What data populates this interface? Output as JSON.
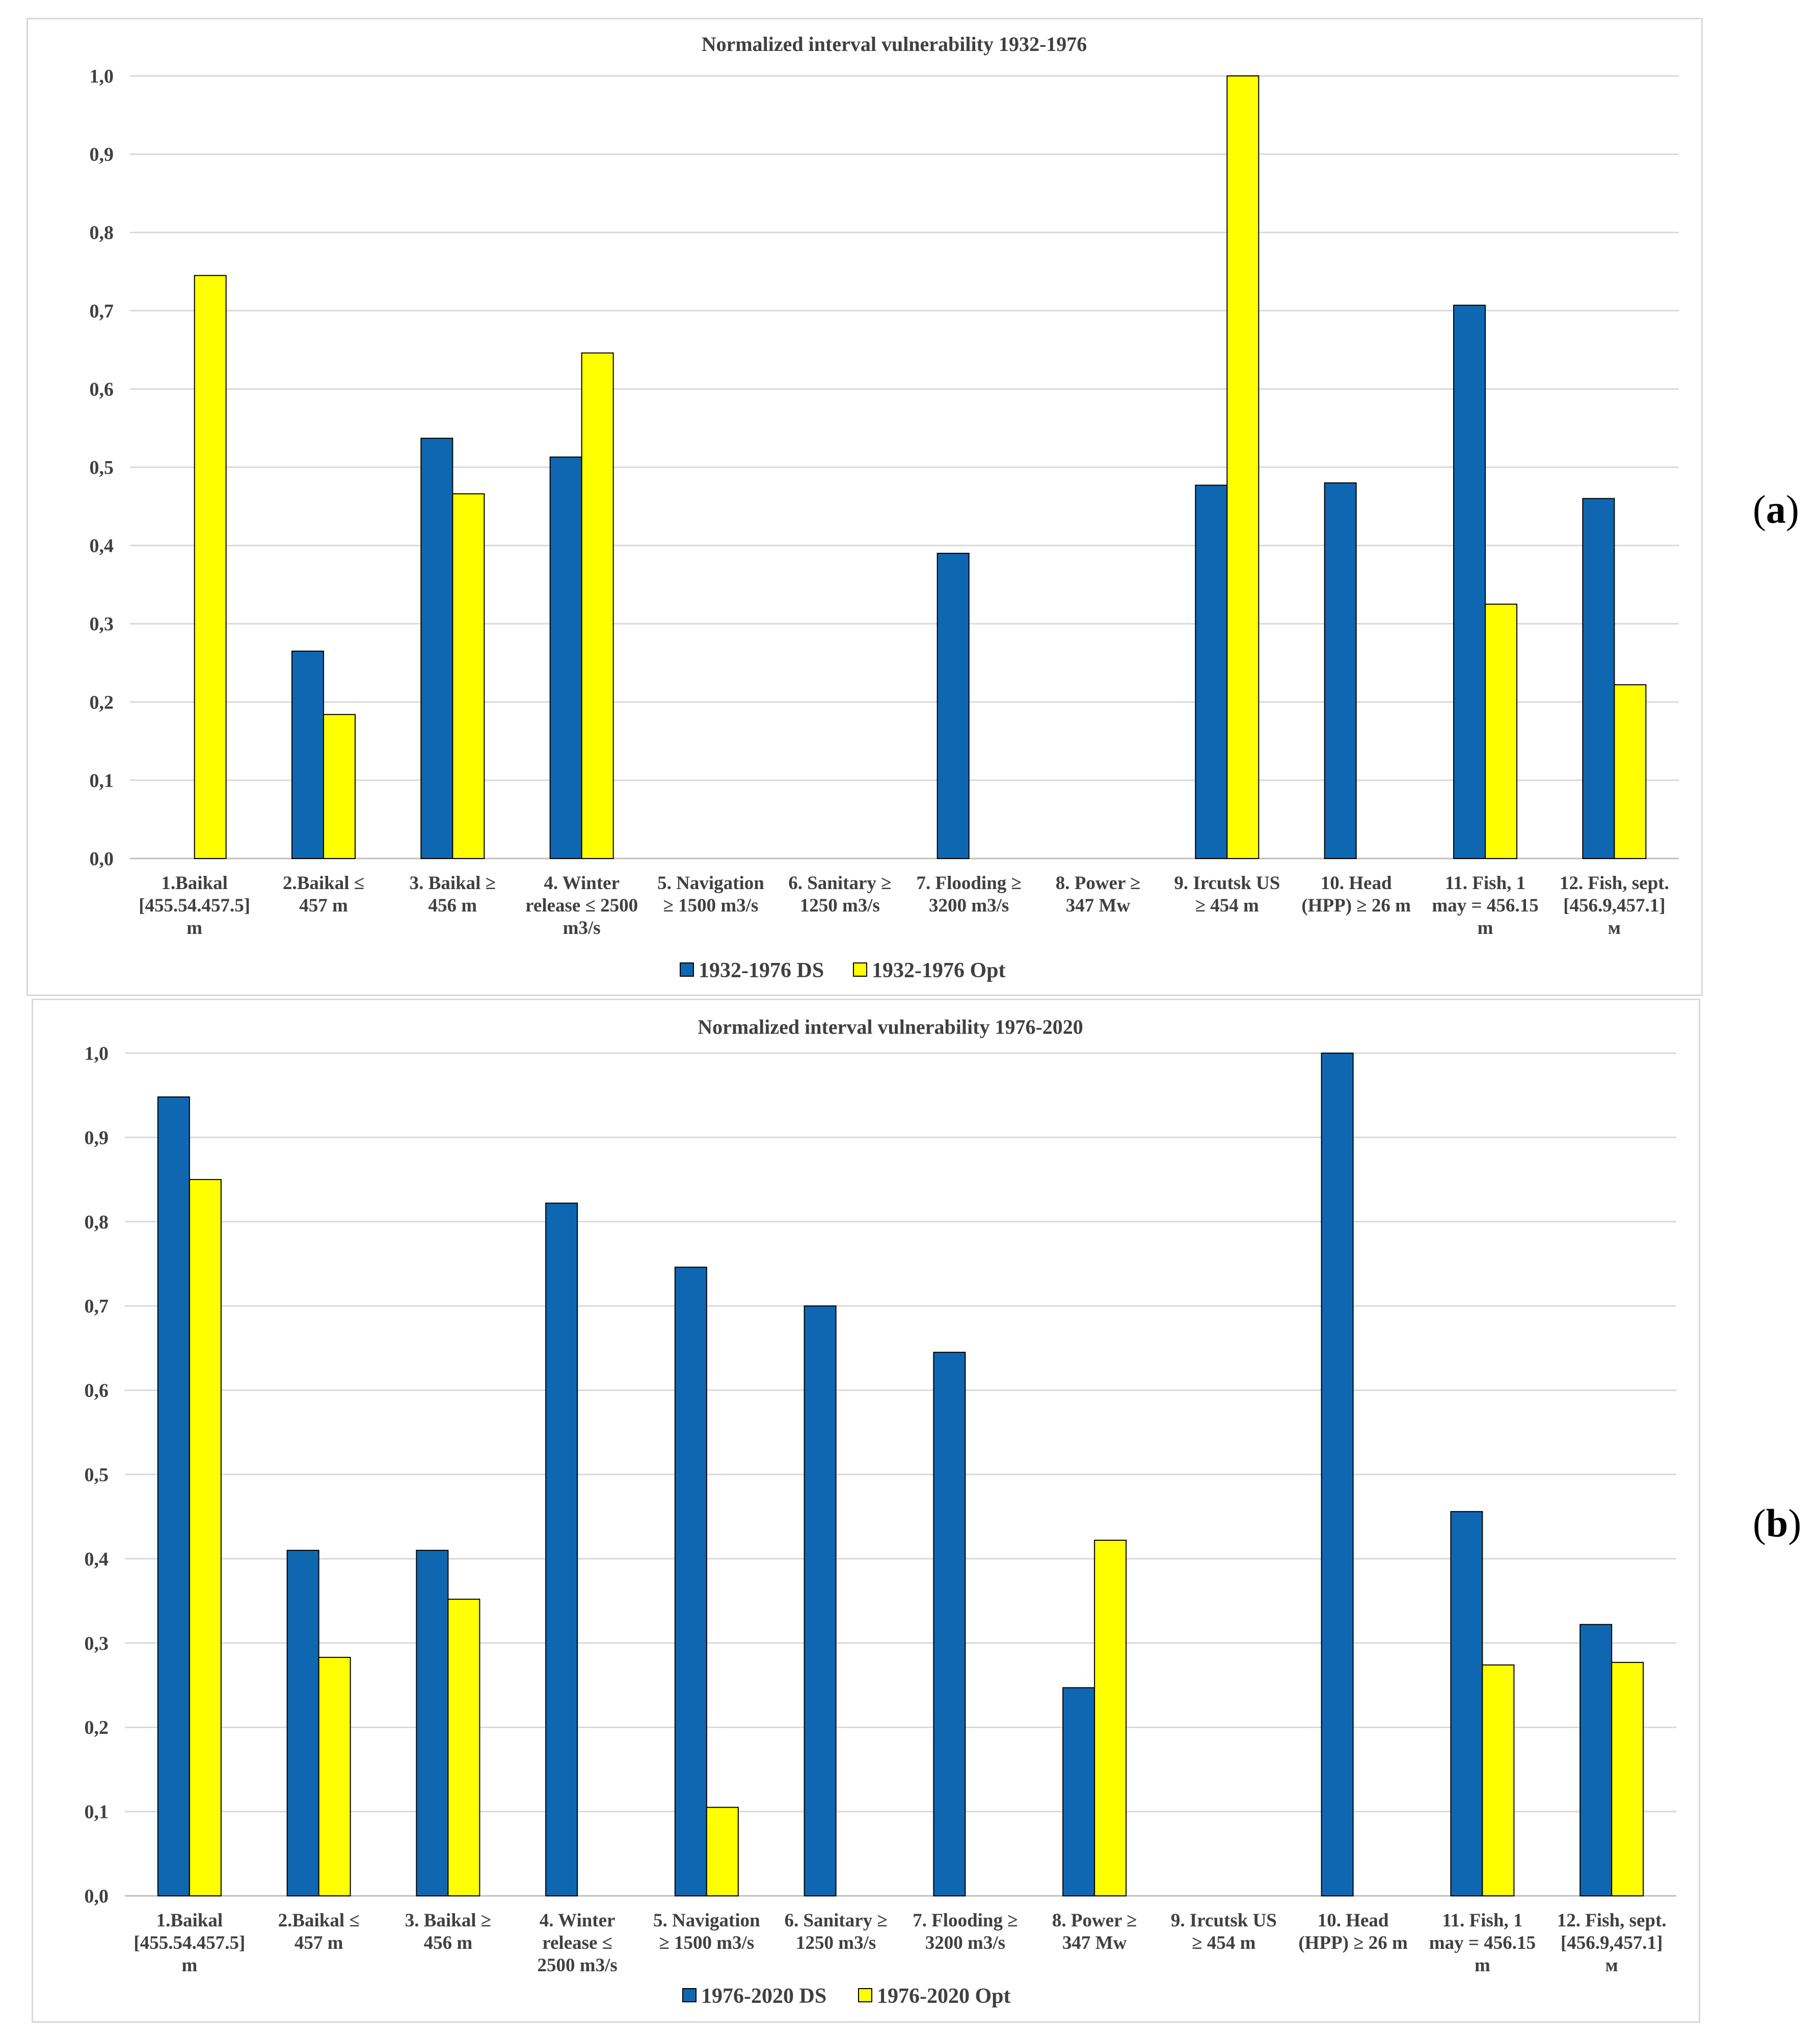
{
  "chart_data": [
    {
      "type": "bar",
      "title": "Normalized interval vulnerability 1932-1976",
      "panel_label": "a",
      "ylim": [
        0,
        1.0
      ],
      "yticks": [
        "0,0",
        "0,1",
        "0,2",
        "0,3",
        "0,4",
        "0,5",
        "0,6",
        "0,7",
        "0,8",
        "0,9",
        "1,0"
      ],
      "categories": [
        [
          "1.Baikal",
          "[455.54.457.5]",
          "m"
        ],
        [
          "2.Baikal ≤",
          "457 m"
        ],
        [
          "3. Baikal ≥",
          "456 m"
        ],
        [
          "4. Winter",
          "release ≤ 2500",
          "m3/s"
        ],
        [
          "5. Navigation",
          "≥ 1500 m3/s"
        ],
        [
          "6. Sanitary ≥",
          "1250 m3/s"
        ],
        [
          "7. Flooding ≥",
          "3200 m3/s"
        ],
        [
          "8. Power ≥",
          "347 Mw"
        ],
        [
          "9. Ircutsk US",
          "≥ 454 m"
        ],
        [
          "10. Head",
          "(HPP) ≥ 26 m"
        ],
        [
          "11. Fish, 1",
          "may = 456.15",
          "m"
        ],
        [
          "12. Fish, sept.",
          "[456.9,457.1]",
          "м"
        ]
      ],
      "series": [
        {
          "name": "1932-1976 DS",
          "color": "#0f67b1",
          "values": [
            0,
            0.265,
            0.537,
            0.513,
            0,
            0,
            0.39,
            0,
            0.477,
            0.48,
            0.707,
            0.46
          ]
        },
        {
          "name": "1932-1976 Opt",
          "color": "#ffff00",
          "values": [
            0.745,
            0.184,
            0.466,
            0.646,
            0,
            0,
            0,
            0,
            1.0,
            0,
            0.325,
            0.222
          ]
        }
      ]
    },
    {
      "type": "bar",
      "title": "Normalized interval vulnerability 1976-2020",
      "panel_label": "b",
      "ylim": [
        0,
        1.0
      ],
      "yticks": [
        "0,0",
        "0,1",
        "0,2",
        "0,3",
        "0,4",
        "0,5",
        "0,6",
        "0,7",
        "0,8",
        "0,9",
        "1,0"
      ],
      "categories": [
        [
          "1.Baikal",
          "[455.54.457.5]",
          "m"
        ],
        [
          "2.Baikal ≤",
          "457 m"
        ],
        [
          "3. Baikal ≥",
          "456 m"
        ],
        [
          "4. Winter",
          "release ≤",
          "2500 m3/s"
        ],
        [
          "5. Navigation",
          "≥ 1500 m3/s"
        ],
        [
          "6. Sanitary ≥",
          "1250 m3/s"
        ],
        [
          "7. Flooding ≥",
          "3200 m3/s"
        ],
        [
          "8. Power ≥",
          "347 Mw"
        ],
        [
          "9. Ircutsk US",
          "≥ 454 m"
        ],
        [
          "10. Head",
          "(HPP) ≥ 26 m"
        ],
        [
          "11. Fish, 1",
          "may = 456.15",
          "m"
        ],
        [
          "12. Fish, sept.",
          "[456.9,457.1]",
          "м"
        ]
      ],
      "series": [
        {
          "name": "1976-2020 DS",
          "color": "#0f67b1",
          "values": [
            0.948,
            0.41,
            0.41,
            0.822,
            0.746,
            0.7,
            0.645,
            0.247,
            0,
            1.0,
            0.456,
            0.322
          ]
        },
        {
          "name": "1976-2020 Opt",
          "color": "#ffff00",
          "values": [
            0.85,
            0.283,
            0.352,
            0,
            0.105,
            0,
            0,
            0.422,
            0,
            0,
            0.274,
            0.277
          ]
        }
      ]
    }
  ]
}
